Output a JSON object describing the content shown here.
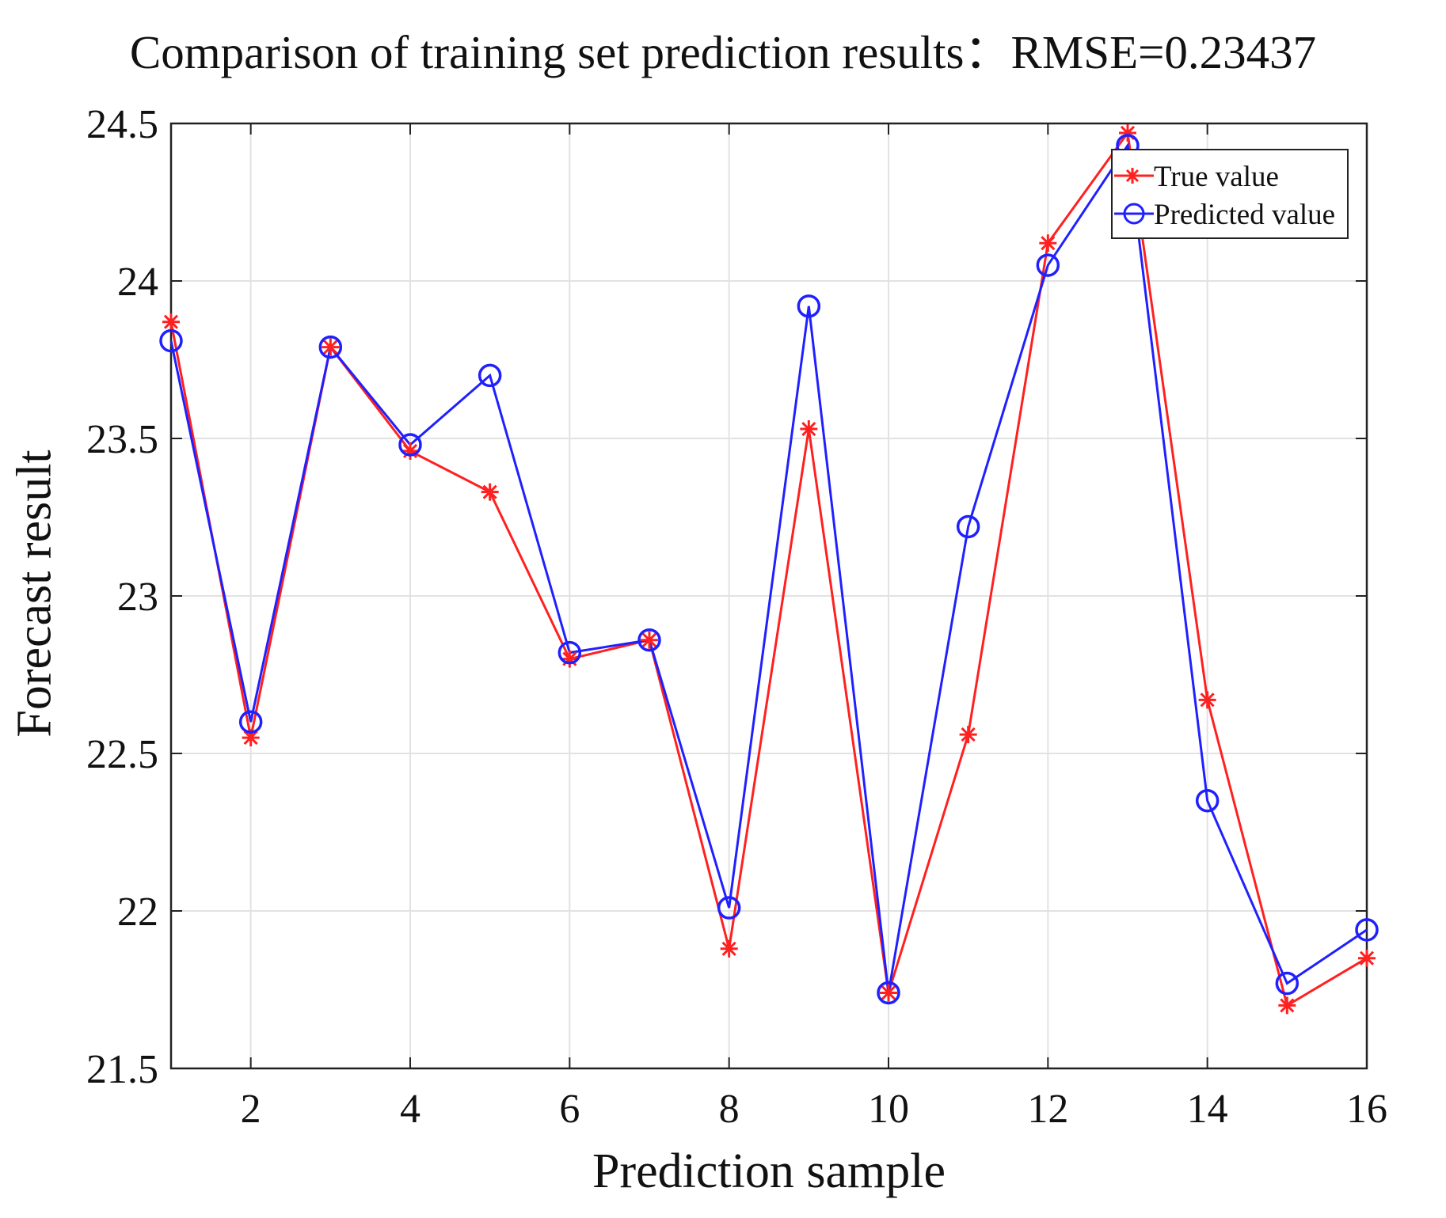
{
  "chart_data": {
    "type": "line",
    "title": "Comparison of training set prediction results：RMSE=0.23437",
    "xlabel": "Prediction sample",
    "ylabel": "Forecast result",
    "x": [
      1,
      2,
      3,
      4,
      5,
      6,
      7,
      8,
      9,
      10,
      11,
      12,
      13,
      14,
      15,
      16
    ],
    "xlim": [
      1,
      16
    ],
    "ylim": [
      21.5,
      24.5
    ],
    "xticks": [
      2,
      4,
      6,
      8,
      10,
      12,
      14,
      16
    ],
    "xtick_labels": [
      "2",
      "4",
      "6",
      "8",
      "10",
      "12",
      "14",
      "16"
    ],
    "yticks": [
      21.5,
      22,
      22.5,
      23,
      23.5,
      24,
      24.5
    ],
    "ytick_labels": [
      "21.5",
      "22",
      "22.5",
      "23",
      "23.5",
      "24",
      "24.5"
    ],
    "grid": true,
    "legend_position": "top-right",
    "series": [
      {
        "name": "True value",
        "color": "#ff2020",
        "marker": "asterisk",
        "values": [
          23.87,
          22.55,
          23.79,
          23.46,
          23.33,
          22.8,
          22.86,
          21.88,
          23.53,
          21.74,
          22.56,
          24.12,
          24.47,
          22.67,
          21.7,
          21.85
        ]
      },
      {
        "name": "Predicted value",
        "color": "#2020ff",
        "marker": "circle",
        "values": [
          23.81,
          22.6,
          23.79,
          23.48,
          23.7,
          22.82,
          22.86,
          22.01,
          23.92,
          21.74,
          23.22,
          24.05,
          24.43,
          22.35,
          21.77,
          21.94
        ]
      }
    ]
  }
}
